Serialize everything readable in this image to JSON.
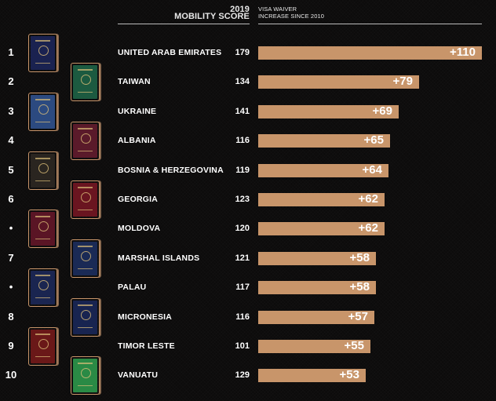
{
  "header": {
    "score_line1": "2019",
    "score_line2": "MOBILITY SCORE",
    "visa_line1": "VISA WAIVER",
    "visa_line2": "INCREASE SINCE 2010"
  },
  "colors": {
    "bar": "#c8956a",
    "background": "#0c0b0b",
    "text": "#ffffff"
  },
  "rows": [
    {
      "rank": "1",
      "country": "UNITED ARAB EMIRATES",
      "score": "179",
      "increase": "+110",
      "value": 110,
      "passport_color": "#1a2250",
      "passport_side": "left"
    },
    {
      "rank": "2",
      "country": "TAIWAN",
      "score": "134",
      "increase": "+79",
      "value": 79,
      "passport_color": "#1c5a40",
      "passport_side": "right"
    },
    {
      "rank": "3",
      "country": "UKRAINE",
      "score": "141",
      "increase": "+69",
      "value": 69,
      "passport_color": "#2c4a80",
      "passport_side": "left"
    },
    {
      "rank": "4",
      "country": "ALBANIA",
      "score": "116",
      "increase": "+65",
      "value": 65,
      "passport_color": "#5a1a2a",
      "passport_side": "right"
    },
    {
      "rank": "5",
      "country": "BOSNIA & HERZEGOVINA",
      "score": "119",
      "increase": "+64",
      "value": 64,
      "passport_color": "#2a2520",
      "passport_side": "left"
    },
    {
      "rank": "6",
      "country": "GEORGIA",
      "score": "123",
      "increase": "+62",
      "value": 62,
      "passport_color": "#6a1520",
      "passport_side": "right"
    },
    {
      "rank": "•",
      "country": "MOLDOVA",
      "score": "120",
      "increase": "+62",
      "value": 62,
      "passport_color": "#5a1525",
      "passport_side": "left"
    },
    {
      "rank": "7",
      "country": "MARSHAL ISLANDS",
      "score": "121",
      "increase": "+58",
      "value": 58,
      "passport_color": "#1a2a55",
      "passport_side": "right"
    },
    {
      "rank": "•",
      "country": "PALAU",
      "score": "117",
      "increase": "+58",
      "value": 58,
      "passport_color": "#1a2550",
      "passport_side": "left"
    },
    {
      "rank": "8",
      "country": "MICRONESIA",
      "score": "116",
      "increase": "+57",
      "value": 57,
      "passport_color": "#182450",
      "passport_side": "right"
    },
    {
      "rank": "9",
      "country": "TIMOR LESTE",
      "score": "101",
      "increase": "+55",
      "value": 55,
      "passport_color": "#6a1818",
      "passport_side": "left"
    },
    {
      "rank": "10",
      "country": "VANUATU",
      "score": "129",
      "increase": "+53",
      "value": 53,
      "passport_color": "#2a8a45",
      "passport_side": "right"
    }
  ],
  "chart_data": {
    "type": "bar",
    "orientation": "horizontal",
    "title": "",
    "xlabel": "VISA WAIVER INCREASE SINCE 2010",
    "ylabel": "",
    "categories": [
      "United Arab Emirates",
      "Taiwan",
      "Ukraine",
      "Albania",
      "Bosnia & Herzegovina",
      "Georgia",
      "Moldova",
      "Marshal Islands",
      "Palau",
      "Micronesia",
      "Timor Leste",
      "Vanuatu"
    ],
    "series": [
      {
        "name": "Visa waiver increase since 2010",
        "values": [
          110,
          79,
          69,
          65,
          64,
          62,
          62,
          58,
          58,
          57,
          55,
          53
        ]
      },
      {
        "name": "2019 Mobility Score",
        "values": [
          179,
          134,
          141,
          116,
          119,
          123,
          120,
          121,
          117,
          116,
          101,
          129
        ]
      }
    ],
    "ranks": [
      "1",
      "2",
      "3",
      "4",
      "5",
      "6",
      "•",
      "7",
      "•",
      "8",
      "9",
      "10"
    ],
    "data_labels": [
      "+110",
      "+79",
      "+69",
      "+65",
      "+64",
      "+62",
      "+62",
      "+58",
      "+58",
      "+57",
      "+55",
      "+53"
    ],
    "grid": false,
    "legend": null
  }
}
